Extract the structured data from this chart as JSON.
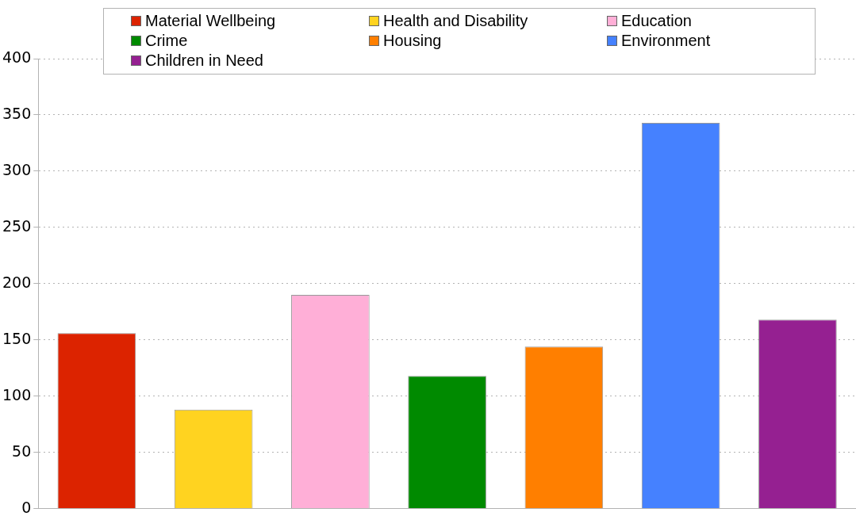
{
  "chart_data": {
    "type": "bar",
    "categories": [
      null,
      null,
      null,
      null,
      null,
      null,
      null
    ],
    "series": [
      {
        "name": "Material Wellbeing",
        "color": "#dc2300",
        "values": [
          156,
          null,
          null,
          null,
          null,
          null,
          null
        ]
      },
      {
        "name": "Health and Disability",
        "color": "#ffd320",
        "values": [
          null,
          88,
          null,
          null,
          null,
          null,
          null
        ]
      },
      {
        "name": "Education",
        "color": "#ffafd7",
        "values": [
          null,
          null,
          190,
          null,
          null,
          null,
          null
        ]
      },
      {
        "name": "Crime",
        "color": "#008a00",
        "values": [
          null,
          null,
          null,
          118,
          null,
          null,
          null
        ]
      },
      {
        "name": "Housing",
        "color": "#ff7f00",
        "values": [
          null,
          null,
          null,
          null,
          144,
          null,
          null
        ]
      },
      {
        "name": "Environment",
        "color": "#4581ff",
        "values": [
          null,
          null,
          null,
          null,
          null,
          343,
          null
        ]
      },
      {
        "name": "Children in Need",
        "color": "#952091",
        "values": [
          null,
          null,
          null,
          null,
          null,
          null,
          168
        ]
      }
    ],
    "ylim": [
      0,
      400
    ],
    "yticks": [
      0,
      50,
      100,
      150,
      200,
      250,
      300,
      350,
      400
    ],
    "grid": "y",
    "legend": "top"
  }
}
